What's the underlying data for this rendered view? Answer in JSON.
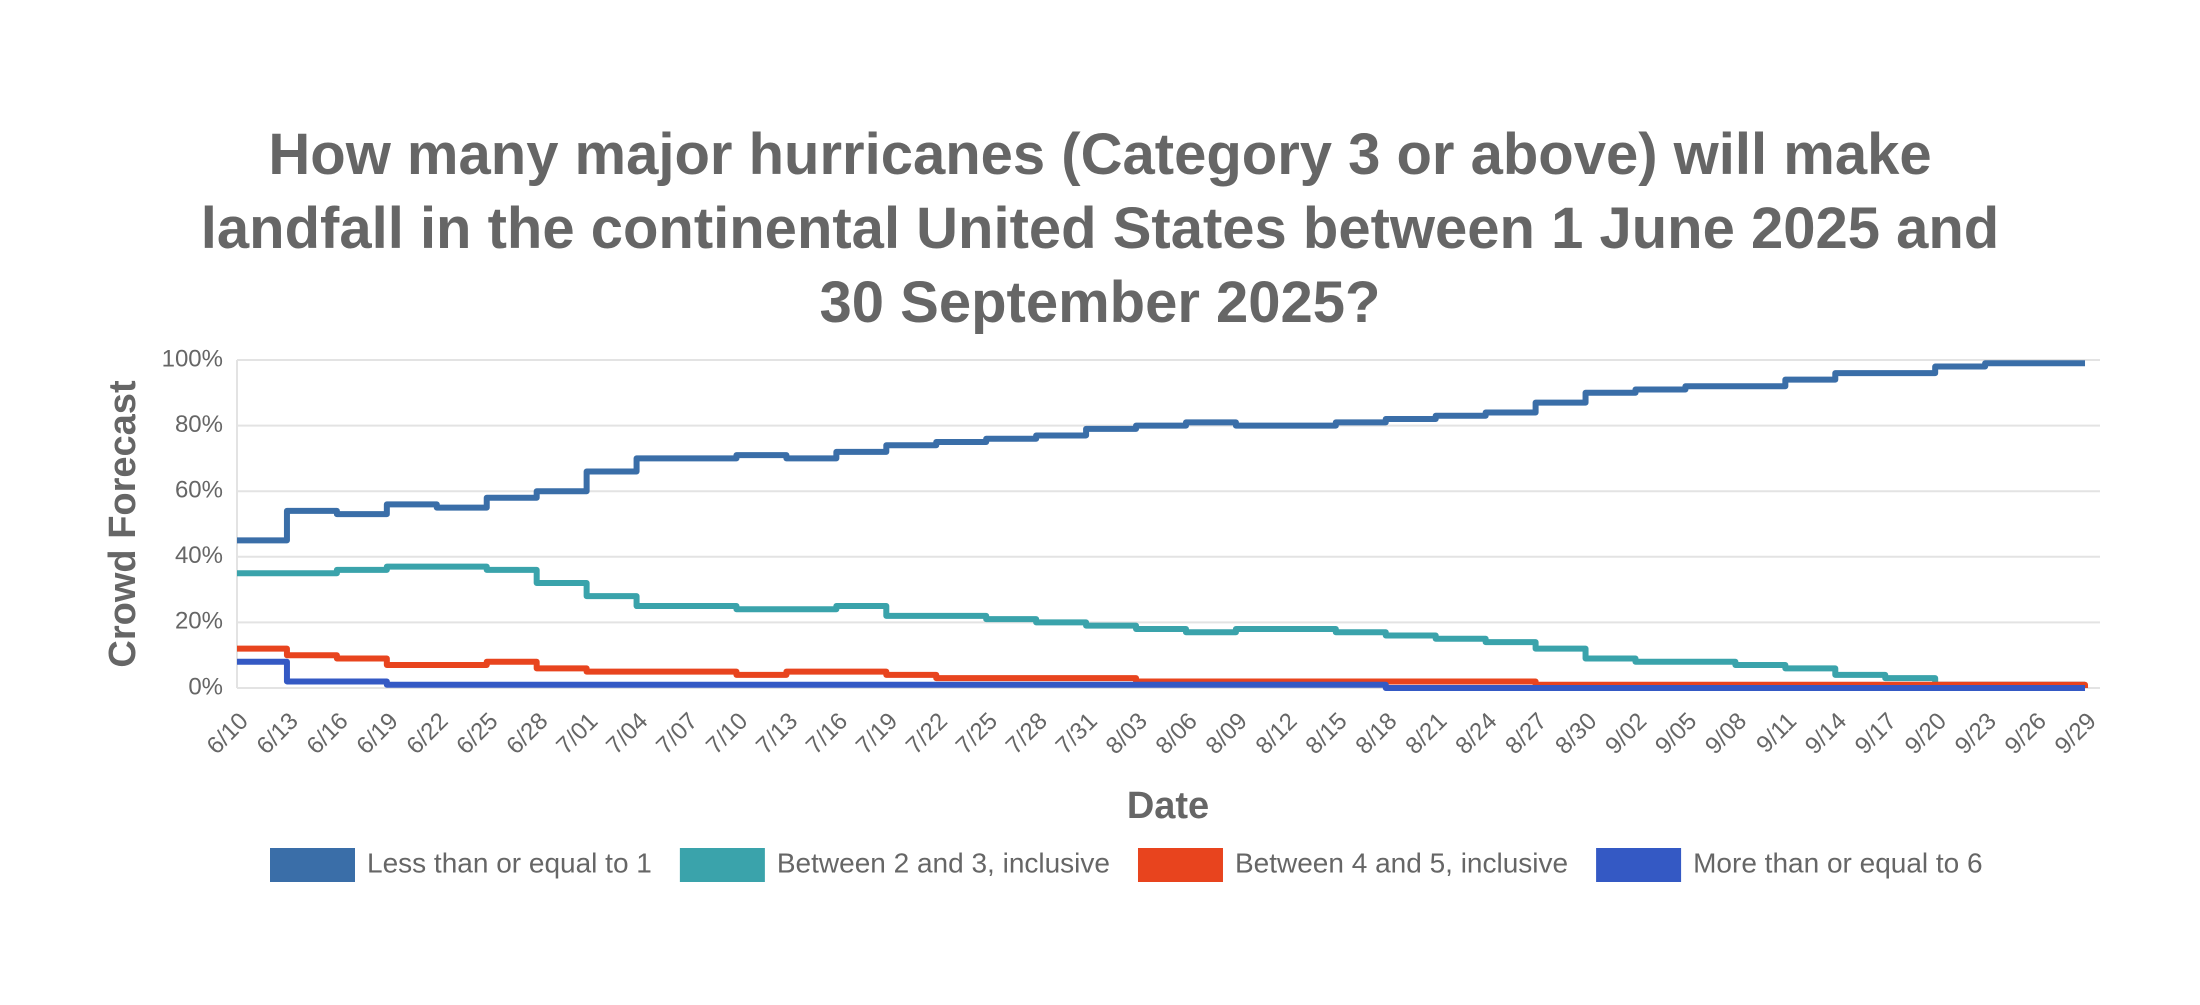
{
  "chart_data": {
    "type": "line",
    "step": true,
    "title": "How many major hurricanes (Category 3 or above) will make landfall in the continental United States between 1 June 2025 and 30 September 2025?",
    "x_label": "Date",
    "y_label": "Crowd Forecast",
    "x": [
      "6/10",
      "6/13",
      "6/16",
      "6/19",
      "6/22",
      "6/25",
      "6/28",
      "7/01",
      "7/04",
      "7/07",
      "7/10",
      "7/13",
      "7/16",
      "7/19",
      "7/22",
      "7/25",
      "7/28",
      "7/31",
      "8/03",
      "8/06",
      "8/09",
      "8/12",
      "8/15",
      "8/18",
      "8/21",
      "8/24",
      "8/27",
      "8/30",
      "9/02",
      "9/05",
      "9/08",
      "9/11",
      "9/14",
      "9/17",
      "9/20",
      "9/23",
      "9/26",
      "9/29"
    ],
    "series": [
      {
        "name": "Less than or equal to 1",
        "color": "#3a6ea8",
        "values": [
          45,
          54,
          53,
          56,
          55,
          58,
          60,
          66,
          70,
          70,
          71,
          70,
          72,
          74,
          75,
          76,
          77,
          79,
          80,
          81,
          80,
          80,
          81,
          82,
          83,
          84,
          87,
          90,
          91,
          92,
          92,
          94,
          96,
          96,
          98,
          99,
          99,
          99
        ]
      },
      {
        "name": "Between 2 and 3, inclusive",
        "color": "#3aa3ab",
        "values": [
          35,
          35,
          36,
          37,
          37,
          36,
          32,
          28,
          25,
          25,
          24,
          24,
          25,
          22,
          22,
          21,
          20,
          19,
          18,
          17,
          18,
          18,
          17,
          16,
          15,
          14,
          12,
          9,
          8,
          8,
          7,
          6,
          4,
          3,
          1,
          1,
          1,
          1
        ]
      },
      {
        "name": "Between 4 and 5, inclusive",
        "color": "#e8441e",
        "values": [
          12,
          10,
          9,
          7,
          7,
          8,
          6,
          5,
          5,
          5,
          4,
          5,
          5,
          4,
          3,
          3,
          3,
          3,
          2,
          2,
          2,
          2,
          2,
          2,
          2,
          2,
          1,
          1,
          1,
          1,
          1,
          1,
          1,
          1,
          1,
          1,
          1,
          0
        ]
      },
      {
        "name": "More than or equal to 6",
        "color": "#3459c4",
        "values": [
          8,
          2,
          2,
          1,
          1,
          1,
          1,
          1,
          1,
          1,
          1,
          1,
          1,
          1,
          1,
          1,
          1,
          1,
          1,
          1,
          1,
          1,
          1,
          0,
          0,
          0,
          0,
          0,
          0,
          0,
          0,
          0,
          0,
          0,
          0,
          0,
          0,
          0
        ]
      }
    ],
    "ylim": [
      0,
      100
    ],
    "yticks": [
      {
        "value": 0,
        "label": "0%"
      },
      {
        "value": 20,
        "label": "20%"
      },
      {
        "value": 40,
        "label": "40%"
      },
      {
        "value": 60,
        "label": "60%"
      },
      {
        "value": 80,
        "label": "80%"
      },
      {
        "value": 100,
        "label": "100%"
      }
    ],
    "grid": true,
    "legend": "bottom"
  }
}
